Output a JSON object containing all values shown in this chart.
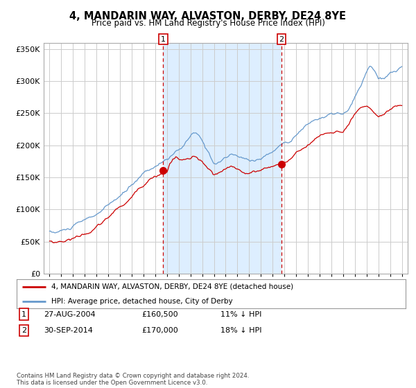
{
  "title": "4, MANDARIN WAY, ALVASTON, DERBY, DE24 8YE",
  "subtitle": "Price paid vs. HM Land Registry's House Price Index (HPI)",
  "legend_line1": "4, MANDARIN WAY, ALVASTON, DERBY, DE24 8YE (detached house)",
  "legend_line2": "HPI: Average price, detached house, City of Derby",
  "footnote": "Contains HM Land Registry data © Crown copyright and database right 2024.\nThis data is licensed under the Open Government Licence v3.0.",
  "sale1_label": "1",
  "sale1_date": "27-AUG-2004",
  "sale1_price": "£160,500",
  "sale1_hpi": "11% ↓ HPI",
  "sale2_label": "2",
  "sale2_date": "30-SEP-2014",
  "sale2_price": "£170,000",
  "sale2_hpi": "18% ↓ HPI",
  "sale1_year": 2004.67,
  "sale1_value": 160500,
  "sale2_year": 2014.75,
  "sale2_value": 170000,
  "hpi_color": "#6699cc",
  "price_color": "#cc0000",
  "marker_color": "#cc0000",
  "background_color": "#ffffff",
  "plot_bg_color": "#ffffff",
  "grid_color": "#cccccc",
  "shade_color": "#ddeeff",
  "ylim": [
    0,
    360000
  ],
  "xlim_start": 1994.5,
  "xlim_end": 2025.5
}
